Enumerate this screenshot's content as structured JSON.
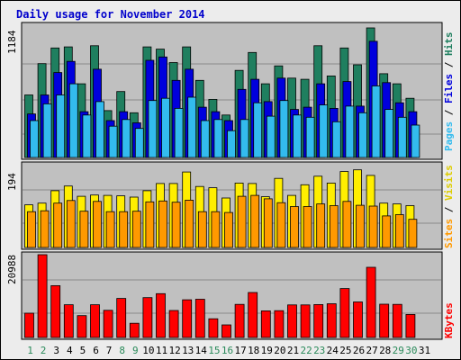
{
  "chart_data": {
    "type": "bar",
    "title": "Daily usage for November 2014",
    "x": [
      "1",
      "2",
      "3",
      "4",
      "5",
      "6",
      "7",
      "8",
      "9",
      "10",
      "11",
      "12",
      "13",
      "14",
      "15",
      "16",
      "17",
      "18",
      "19",
      "20",
      "21",
      "22",
      "23",
      "24",
      "25",
      "26",
      "27",
      "28",
      "29",
      "30",
      "31"
    ],
    "weekend_days": [
      "1",
      "2",
      "8",
      "9",
      "15",
      "16",
      "22",
      "23",
      "29",
      "30"
    ],
    "panels": [
      {
        "key": "top",
        "ymax_label": "1184",
        "ymax": 1184,
        "series": [
          {
            "name": "Hits",
            "color": "#1f7f5f",
            "values": [
              560,
              840,
              980,
              990,
              660,
              1000,
              420,
              590,
              400,
              990,
              970,
              850,
              990,
              690,
              520,
              380,
              780,
              940,
              660,
              820,
              710,
              700,
              1000,
              730,
              980,
              830,
              1160,
              750,
              660,
              530
            ]
          },
          {
            "name": "Files",
            "color": "#0000dd",
            "values": [
              390,
              560,
              760,
              860,
              410,
              790,
              330,
              410,
              310,
              870,
              900,
              690,
              790,
              450,
              410,
              330,
              610,
              700,
              500,
              710,
              430,
              450,
              660,
              440,
              680,
              460,
              1040,
              670,
              490,
              410
            ]
          },
          {
            "name": "Pages",
            "color": "#33bbee",
            "values": [
              330,
              480,
              560,
              660,
              380,
              500,
              280,
              340,
              260,
              510,
              530,
              440,
              540,
              330,
              340,
              240,
              340,
              490,
              370,
              510,
              380,
              360,
              470,
              320,
              460,
              400,
              640,
              430,
              360,
              290
            ]
          }
        ]
      },
      {
        "key": "mid",
        "ymax_label": "194",
        "ymax": 194,
        "series": [
          {
            "name": "Visits",
            "color": "#ffee00",
            "values": [
              100,
              104,
              133,
              144,
              120,
              123,
              122,
              121,
              118,
              133,
              150,
              150,
              177,
              143,
              140,
              116,
              151,
              150,
              119,
              162,
              122,
              147,
              167,
              151,
              178,
              182,
              169,
              104,
              102,
              98
            ]
          },
          {
            "name": "Sites",
            "color": "#ff9900",
            "values": [
              84,
              86,
              104,
              110,
              85,
              108,
              84,
              84,
              85,
              107,
              109,
              106,
              111,
              84,
              84,
              82,
              120,
              122,
              114,
              105,
              96,
              96,
              102,
              98,
              108,
              99,
              97,
              74,
              77,
              66
            ]
          }
        ]
      },
      {
        "key": "bot",
        "ymax_label": "20988",
        "ymax": 20988,
        "series": [
          {
            "name": "KBytes",
            "color": "#ff0000",
            "values": [
              6150,
              20988,
              13150,
              8300,
              5550,
              8300,
              6900,
              9900,
              3600,
              10100,
              11100,
              6850,
              9550,
              9700,
              4750,
              3200,
              8400,
              11400,
              6750,
              6800,
              8250,
              8250,
              8350,
              8550,
              12400,
              9000,
              17800,
              8450,
              8400,
              5850
            ]
          }
        ]
      }
    ]
  }
}
